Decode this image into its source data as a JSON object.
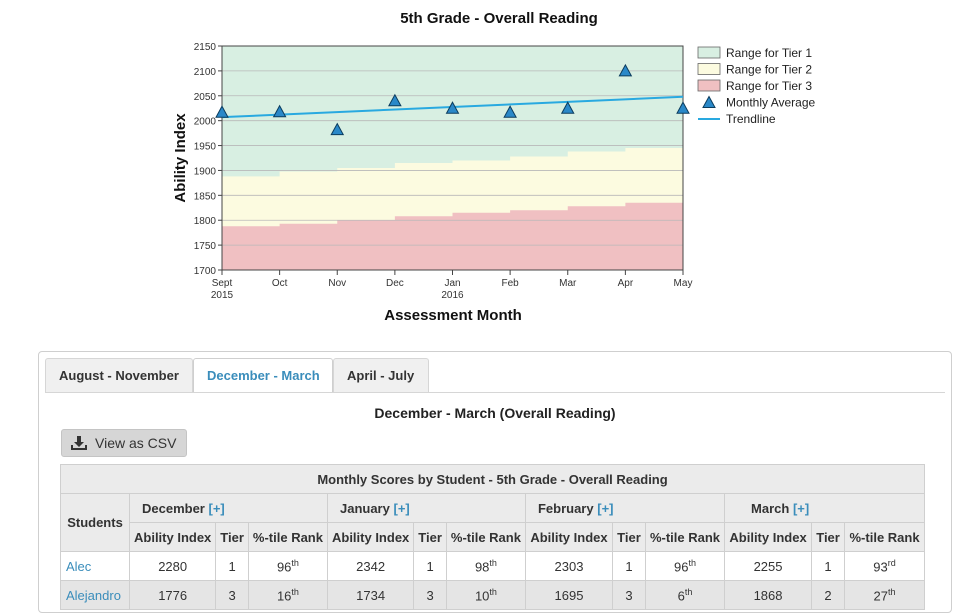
{
  "chart_data": {
    "type": "line",
    "title": "5th Grade - Overall Reading",
    "xlabel": "Assessment Month",
    "ylabel": "Ability Index",
    "ylim": [
      1700,
      2150
    ],
    "yticks": [
      1700,
      1750,
      1800,
      1850,
      1900,
      1950,
      2000,
      2050,
      2100,
      2150
    ],
    "x_categories": [
      "Sept",
      "Oct",
      "Nov",
      "Dec",
      "Jan",
      "Feb",
      "Mar",
      "Apr",
      "May"
    ],
    "x_sublabels": [
      "2015",
      "",
      "",
      "",
      "2016",
      "",
      "",
      "",
      ""
    ],
    "tier1_lower": [
      1888,
      1898,
      1905,
      1915,
      1920,
      1928,
      1938,
      1945
    ],
    "tier2_lower": [
      1788,
      1793,
      1800,
      1808,
      1815,
      1820,
      1828,
      1835
    ],
    "monthly_average": [
      2017,
      2018,
      1982,
      2040,
      2025,
      2017,
      2025,
      2100,
      2025
    ],
    "trendline": [
      2007,
      2048
    ],
    "grid": true,
    "legend_position": "right",
    "legend": [
      {
        "label": "Range for Tier 1",
        "color": "#d8efe2"
      },
      {
        "label": "Range for Tier 2",
        "color": "#fcfbe0"
      },
      {
        "label": "Range for Tier 3",
        "color": "#f0c0c2"
      },
      {
        "label": "Monthly Average",
        "color": "#2a88c8"
      },
      {
        "label": "Trendline",
        "color": "#29a9e0"
      }
    ]
  },
  "tabs": [
    "August - November",
    "December - March",
    "April - July"
  ],
  "active_tab": 1,
  "section_title": "December - March (Overall Reading)",
  "csv_button": "View as CSV",
  "table": {
    "title": "Monthly Scores by Student - 5th Grade - Overall Reading",
    "students_header": "Students",
    "expand": "[+]",
    "months": [
      "December",
      "January",
      "February",
      "March"
    ],
    "sub_headers": [
      "Ability Index",
      "Tier",
      "%-tile Rank"
    ],
    "rows": [
      {
        "name": "Alec",
        "cells": [
          {
            "ai": "2280",
            "tier": "1",
            "rank": "96",
            "suf": "th"
          },
          {
            "ai": "2342",
            "tier": "1",
            "rank": "98",
            "suf": "th"
          },
          {
            "ai": "2303",
            "tier": "1",
            "rank": "96",
            "suf": "th"
          },
          {
            "ai": "2255",
            "tier": "1",
            "rank": "93",
            "suf": "rd"
          }
        ]
      },
      {
        "name": "Alejandro",
        "cells": [
          {
            "ai": "1776",
            "tier": "3",
            "rank": "16",
            "suf": "th"
          },
          {
            "ai": "1734",
            "tier": "3",
            "rank": "10",
            "suf": "th"
          },
          {
            "ai": "1695",
            "tier": "3",
            "rank": "6",
            "suf": "th"
          },
          {
            "ai": "1868",
            "tier": "2",
            "rank": "27",
            "suf": "th"
          }
        ]
      }
    ]
  },
  "colors": {
    "accent": "#3a8dbb",
    "tier1": "#d8efe2",
    "tier2": "#fcfbe0",
    "tier3": "#f0c0c2",
    "marker": "#2a88c8",
    "trend": "#29a9e0"
  }
}
